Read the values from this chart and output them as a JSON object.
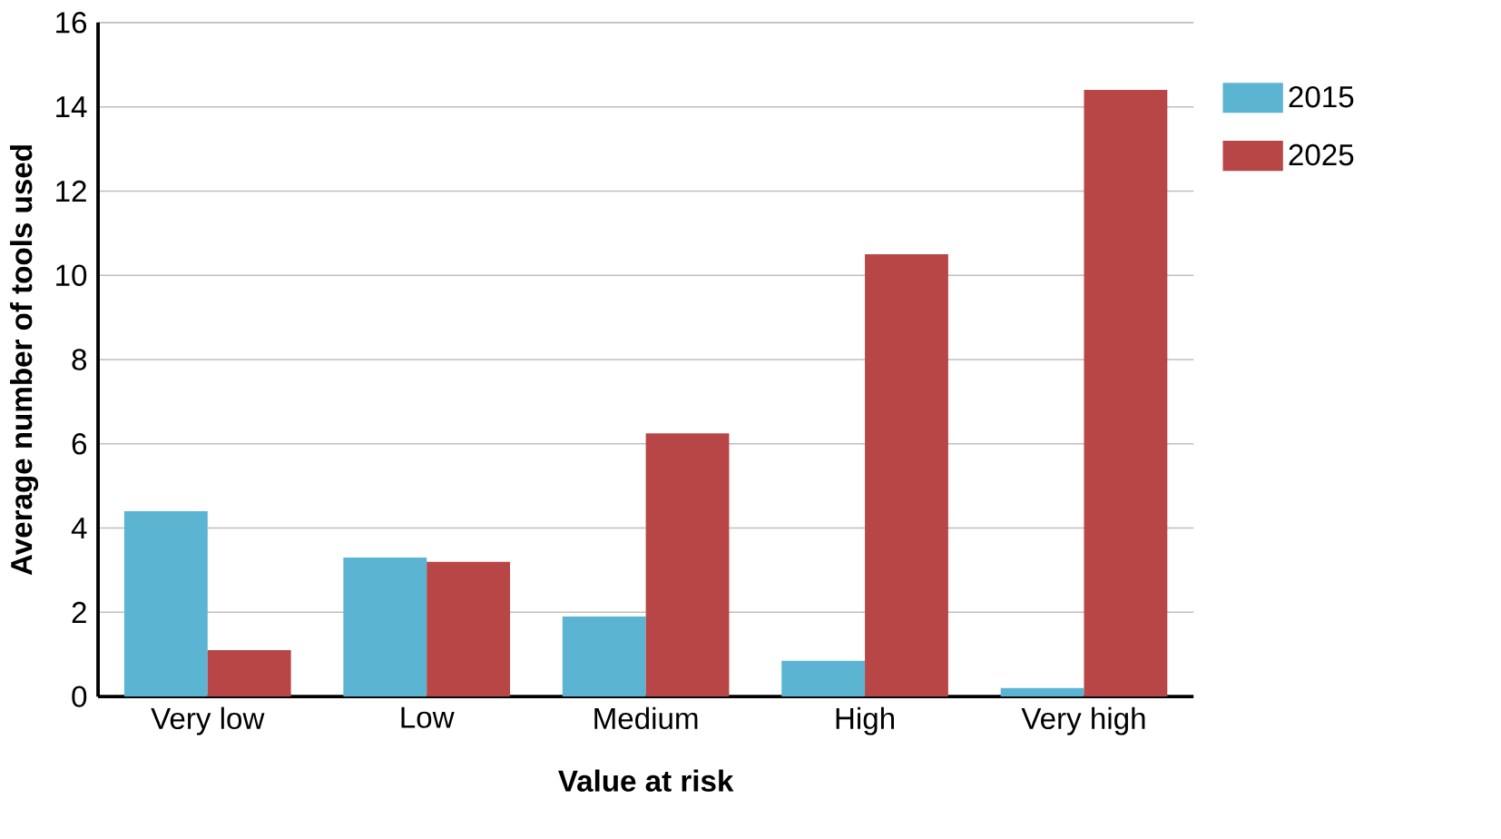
{
  "chart_data": {
    "type": "bar",
    "xlabel": "Value at risk",
    "ylabel": "Average number of tools used",
    "categories": [
      "Very low",
      "Low",
      "Medium",
      "High",
      "Very high"
    ],
    "series": [
      {
        "name": "2015",
        "color": "#5ab4d2",
        "values": [
          4.4,
          3.3,
          1.9,
          0.85,
          0.2
        ]
      },
      {
        "name": "2025",
        "color": "#b94646",
        "values": [
          1.1,
          3.2,
          6.25,
          10.5,
          14.4
        ]
      }
    ],
    "ylim": [
      0,
      16
    ],
    "yticks": [
      0,
      2,
      4,
      6,
      8,
      10,
      12,
      14,
      16
    ],
    "grid": "y",
    "legend": "top right"
  }
}
